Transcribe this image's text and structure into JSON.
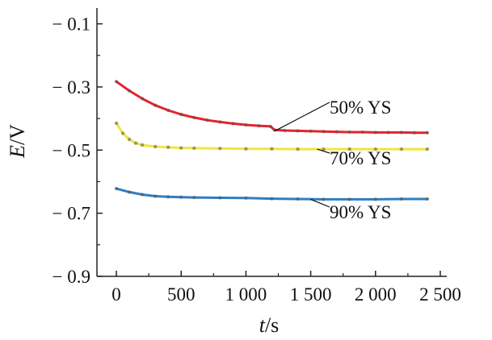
{
  "chart_data": {
    "type": "line",
    "title": "",
    "xlabel": "t/s",
    "xlabel_var": "t",
    "xlabel_unit": "/s",
    "ylabel": "E/V",
    "ylabel_var": "E",
    "ylabel_unit": "/V",
    "xlim": [
      -150,
      2550
    ],
    "ylim": [
      -0.9,
      -0.05
    ],
    "xticks": [
      0,
      500,
      1000,
      1500,
      2000,
      2500
    ],
    "xtick_labels": [
      "0",
      "500",
      "1 000",
      "1 500",
      "2 000",
      "2 500"
    ],
    "yticks": [
      -0.1,
      -0.3,
      -0.5,
      -0.7,
      -0.9
    ],
    "ytick_labels": [
      "− 0.1",
      "− 0.3",
      "− 0.5",
      "− 0.7",
      "− 0.9"
    ],
    "grid": false,
    "series": [
      {
        "name": "50% YS",
        "color": "#e8222a",
        "label_anchor": [
          1220,
          -0.44
        ],
        "x": [
          0,
          100,
          200,
          300,
          400,
          500,
          600,
          700,
          800,
          900,
          1000,
          1100,
          1190,
          1220,
          1300,
          1400,
          1500,
          1600,
          1700,
          1800,
          1900,
          2000,
          2100,
          2200,
          2300,
          2400
        ],
        "values": [
          -0.283,
          -0.312,
          -0.337,
          -0.358,
          -0.374,
          -0.387,
          -0.397,
          -0.405,
          -0.411,
          -0.416,
          -0.42,
          -0.423,
          -0.425,
          -0.436,
          -0.438,
          -0.439,
          -0.44,
          -0.441,
          -0.442,
          -0.443,
          -0.443,
          -0.444,
          -0.444,
          -0.444,
          -0.445,
          -0.445
        ]
      },
      {
        "name": "70% YS",
        "color": "#f0e63c",
        "label_anchor": [
          1550,
          -0.497
        ],
        "x": [
          0,
          50,
          100,
          150,
          200,
          300,
          400,
          500,
          600,
          800,
          1000,
          1200,
          1400,
          1600,
          1800,
          2000,
          2200,
          2400
        ],
        "values": [
          -0.415,
          -0.447,
          -0.466,
          -0.478,
          -0.484,
          -0.489,
          -0.491,
          -0.493,
          -0.494,
          -0.495,
          -0.496,
          -0.496,
          -0.497,
          -0.497,
          -0.497,
          -0.497,
          -0.497,
          -0.497
        ]
      },
      {
        "name": "90% YS",
        "color": "#2f7ec1",
        "label_anchor": [
          1500,
          -0.656
        ],
        "x": [
          0,
          100,
          200,
          300,
          400,
          500,
          600,
          800,
          1000,
          1200,
          1400,
          1600,
          1800,
          2000,
          2200,
          2400
        ],
        "values": [
          -0.622,
          -0.633,
          -0.641,
          -0.646,
          -0.648,
          -0.649,
          -0.65,
          -0.651,
          -0.652,
          -0.654,
          -0.655,
          -0.656,
          -0.656,
          -0.656,
          -0.655,
          -0.655
        ]
      }
    ]
  }
}
